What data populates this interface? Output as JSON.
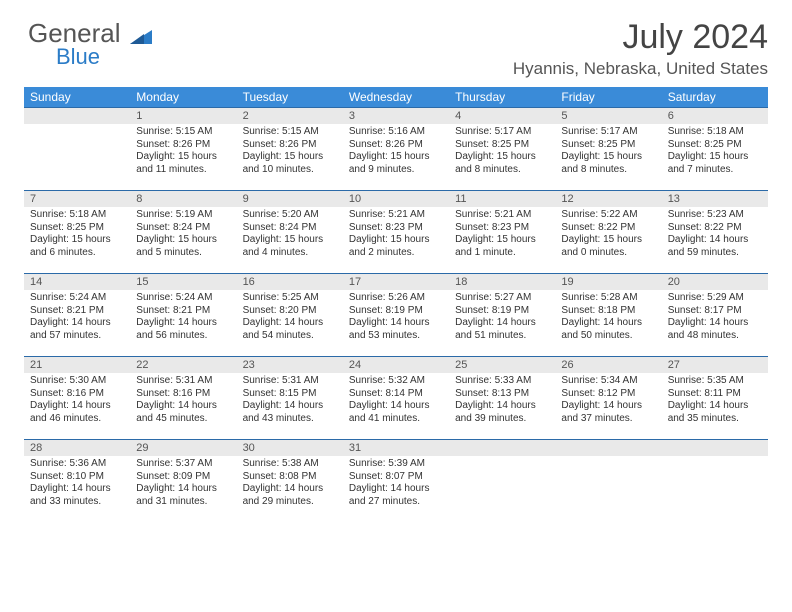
{
  "brand": {
    "word1": "General",
    "word2": "Blue"
  },
  "title": "July 2024",
  "location": "Hyannis, Nebraska, United States",
  "colors": {
    "header_bg": "#3a8bd8",
    "header_text": "#ffffff",
    "row_border": "#2b6aa8",
    "daynum_bg": "#e9e9e9",
    "brand_blue": "#2b7cc7",
    "text": "#333333"
  },
  "days_of_week": [
    "Sunday",
    "Monday",
    "Tuesday",
    "Wednesday",
    "Thursday",
    "Friday",
    "Saturday"
  ],
  "start_day_index": 1,
  "days": [
    {
      "n": 1,
      "sunrise": "5:15 AM",
      "sunset": "8:26 PM",
      "daylight": "15 hours and 11 minutes."
    },
    {
      "n": 2,
      "sunrise": "5:15 AM",
      "sunset": "8:26 PM",
      "daylight": "15 hours and 10 minutes."
    },
    {
      "n": 3,
      "sunrise": "5:16 AM",
      "sunset": "8:26 PM",
      "daylight": "15 hours and 9 minutes."
    },
    {
      "n": 4,
      "sunrise": "5:17 AM",
      "sunset": "8:25 PM",
      "daylight": "15 hours and 8 minutes."
    },
    {
      "n": 5,
      "sunrise": "5:17 AM",
      "sunset": "8:25 PM",
      "daylight": "15 hours and 8 minutes."
    },
    {
      "n": 6,
      "sunrise": "5:18 AM",
      "sunset": "8:25 PM",
      "daylight": "15 hours and 7 minutes."
    },
    {
      "n": 7,
      "sunrise": "5:18 AM",
      "sunset": "8:25 PM",
      "daylight": "15 hours and 6 minutes."
    },
    {
      "n": 8,
      "sunrise": "5:19 AM",
      "sunset": "8:24 PM",
      "daylight": "15 hours and 5 minutes."
    },
    {
      "n": 9,
      "sunrise": "5:20 AM",
      "sunset": "8:24 PM",
      "daylight": "15 hours and 4 minutes."
    },
    {
      "n": 10,
      "sunrise": "5:21 AM",
      "sunset": "8:23 PM",
      "daylight": "15 hours and 2 minutes."
    },
    {
      "n": 11,
      "sunrise": "5:21 AM",
      "sunset": "8:23 PM",
      "daylight": "15 hours and 1 minute."
    },
    {
      "n": 12,
      "sunrise": "5:22 AM",
      "sunset": "8:22 PM",
      "daylight": "15 hours and 0 minutes."
    },
    {
      "n": 13,
      "sunrise": "5:23 AM",
      "sunset": "8:22 PM",
      "daylight": "14 hours and 59 minutes."
    },
    {
      "n": 14,
      "sunrise": "5:24 AM",
      "sunset": "8:21 PM",
      "daylight": "14 hours and 57 minutes."
    },
    {
      "n": 15,
      "sunrise": "5:24 AM",
      "sunset": "8:21 PM",
      "daylight": "14 hours and 56 minutes."
    },
    {
      "n": 16,
      "sunrise": "5:25 AM",
      "sunset": "8:20 PM",
      "daylight": "14 hours and 54 minutes."
    },
    {
      "n": 17,
      "sunrise": "5:26 AM",
      "sunset": "8:19 PM",
      "daylight": "14 hours and 53 minutes."
    },
    {
      "n": 18,
      "sunrise": "5:27 AM",
      "sunset": "8:19 PM",
      "daylight": "14 hours and 51 minutes."
    },
    {
      "n": 19,
      "sunrise": "5:28 AM",
      "sunset": "8:18 PM",
      "daylight": "14 hours and 50 minutes."
    },
    {
      "n": 20,
      "sunrise": "5:29 AM",
      "sunset": "8:17 PM",
      "daylight": "14 hours and 48 minutes."
    },
    {
      "n": 21,
      "sunrise": "5:30 AM",
      "sunset": "8:16 PM",
      "daylight": "14 hours and 46 minutes."
    },
    {
      "n": 22,
      "sunrise": "5:31 AM",
      "sunset": "8:16 PM",
      "daylight": "14 hours and 45 minutes."
    },
    {
      "n": 23,
      "sunrise": "5:31 AM",
      "sunset": "8:15 PM",
      "daylight": "14 hours and 43 minutes."
    },
    {
      "n": 24,
      "sunrise": "5:32 AM",
      "sunset": "8:14 PM",
      "daylight": "14 hours and 41 minutes."
    },
    {
      "n": 25,
      "sunrise": "5:33 AM",
      "sunset": "8:13 PM",
      "daylight": "14 hours and 39 minutes."
    },
    {
      "n": 26,
      "sunrise": "5:34 AM",
      "sunset": "8:12 PM",
      "daylight": "14 hours and 37 minutes."
    },
    {
      "n": 27,
      "sunrise": "5:35 AM",
      "sunset": "8:11 PM",
      "daylight": "14 hours and 35 minutes."
    },
    {
      "n": 28,
      "sunrise": "5:36 AM",
      "sunset": "8:10 PM",
      "daylight": "14 hours and 33 minutes."
    },
    {
      "n": 29,
      "sunrise": "5:37 AM",
      "sunset": "8:09 PM",
      "daylight": "14 hours and 31 minutes."
    },
    {
      "n": 30,
      "sunrise": "5:38 AM",
      "sunset": "8:08 PM",
      "daylight": "14 hours and 29 minutes."
    },
    {
      "n": 31,
      "sunrise": "5:39 AM",
      "sunset": "8:07 PM",
      "daylight": "14 hours and 27 minutes."
    }
  ],
  "labels": {
    "sunrise": "Sunrise:",
    "sunset": "Sunset:",
    "daylight": "Daylight:"
  }
}
